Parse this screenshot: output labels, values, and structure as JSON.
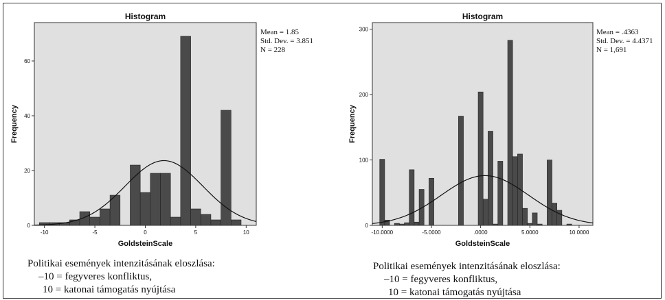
{
  "charts": [
    {
      "type": "bar",
      "title": "Histogram",
      "xlabel": "GoldsteinScale",
      "ylabel": "Frequency",
      "stats": {
        "mean": "Mean = 1.85",
        "std": "Std. Dev. = 3.851",
        "n": "N = 228"
      },
      "xlim": [
        -11,
        11
      ],
      "ylim": [
        0,
        74
      ],
      "xticks": [
        -10,
        -5,
        0,
        5,
        10
      ],
      "xtick_labels": [
        "-10",
        "-5",
        "0",
        "5",
        "10"
      ],
      "yticks": [
        0,
        20,
        40,
        60
      ],
      "bin_width": 1,
      "bars": [
        {
          "x": -10,
          "value": 1
        },
        {
          "x": -9,
          "value": 1
        },
        {
          "x": -8,
          "value": 1
        },
        {
          "x": -7,
          "value": 2
        },
        {
          "x": -6,
          "value": 5
        },
        {
          "x": -5,
          "value": 3
        },
        {
          "x": -4,
          "value": 6
        },
        {
          "x": -3,
          "value": 11
        },
        {
          "x": -1,
          "value": 22
        },
        {
          "x": 0,
          "value": 12
        },
        {
          "x": 1,
          "value": 19
        },
        {
          "x": 2,
          "value": 19
        },
        {
          "x": 3,
          "value": 3
        },
        {
          "x": 4,
          "value": 69
        },
        {
          "x": 5,
          "value": 6
        },
        {
          "x": 6,
          "value": 4
        },
        {
          "x": 7,
          "value": 2
        },
        {
          "x": 8,
          "value": 42
        },
        {
          "x": 9,
          "value": 2
        }
      ],
      "normal_curve": {
        "mean": 1.85,
        "sd": 3.851,
        "n": 228
      },
      "caption": [
        "Politikai események intenzitásának eloszlása:",
        "–10 = fegyveres konfliktus,",
        "10 = katonai támogatás nyújtása"
      ]
    },
    {
      "type": "bar",
      "title": "Histogram",
      "xlabel": "GoldsteinScale",
      "ylabel": "Frequency",
      "stats": {
        "mean": "Mean = .4363",
        "std": "Std. Dev. = 4.4371",
        "n": "N = 1,691"
      },
      "xlim": [
        -11,
        11.4
      ],
      "ylim": [
        0,
        310
      ],
      "xticks": [
        -10,
        -5,
        0,
        5,
        10
      ],
      "xtick_labels": [
        "-10.0000",
        "-5.0000",
        ".0000",
        "5.0000",
        "10.0000"
      ],
      "yticks": [
        0,
        100,
        200,
        300
      ],
      "bin_width": 0.5,
      "bars": [
        {
          "x": -10,
          "value": 101
        },
        {
          "x": -9.5,
          "value": 8
        },
        {
          "x": -8.5,
          "value": 3
        },
        {
          "x": -8,
          "value": 2
        },
        {
          "x": -7.5,
          "value": 4
        },
        {
          "x": -7,
          "value": 85
        },
        {
          "x": -6.5,
          "value": 5
        },
        {
          "x": -6,
          "value": 55
        },
        {
          "x": -5,
          "value": 72
        },
        {
          "x": -2,
          "value": 167
        },
        {
          "x": 0,
          "value": 204
        },
        {
          "x": 0.5,
          "value": 40
        },
        {
          "x": 1,
          "value": 144
        },
        {
          "x": 1.5,
          "value": 2
        },
        {
          "x": 2,
          "value": 98
        },
        {
          "x": 3,
          "value": 283
        },
        {
          "x": 3.5,
          "value": 105
        },
        {
          "x": 4,
          "value": 109
        },
        {
          "x": 4.5,
          "value": 26
        },
        {
          "x": 5,
          "value": 3
        },
        {
          "x": 5.5,
          "value": 19
        },
        {
          "x": 6,
          "value": 2
        },
        {
          "x": 7,
          "value": 100
        },
        {
          "x": 7.5,
          "value": 34
        },
        {
          "x": 8,
          "value": 23
        },
        {
          "x": 9,
          "value": 2
        }
      ],
      "normal_curve": {
        "mean": 0.4363,
        "sd": 4.4371,
        "n": 1691
      },
      "caption": [
        "Politikai események intenzitásának eloszlása:",
        "–10 = fegyveres konfliktus,",
        "10 = katonai támogatás nyújtása"
      ]
    }
  ],
  "colors": {
    "plot_bg": "#e0e0e0",
    "bar": "#4a4a4a",
    "bar_edge": "#222222",
    "curve": "#111111"
  }
}
